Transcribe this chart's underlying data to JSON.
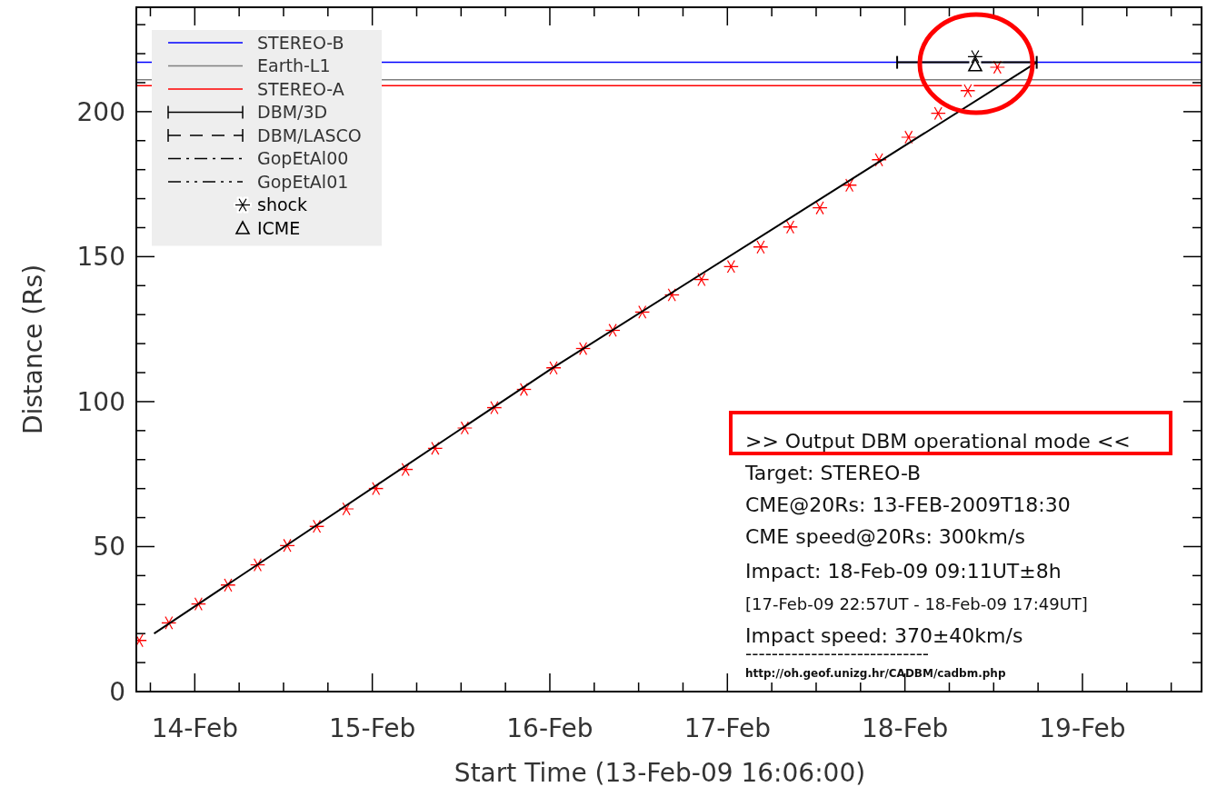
{
  "chart_data": {
    "type": "line",
    "xlabel": "Start Time (13-Feb-09 16:06:00)",
    "ylabel": "Distance (Rs)",
    "xlim": [
      "2009-02-13T16:06",
      "2009-02-19T16:06"
    ],
    "xticks": [
      {
        "value": "2009-02-13T18:00",
        "label": null
      },
      {
        "value": "2009-02-14",
        "label": "14-Feb"
      },
      {
        "value": "2009-02-14T06:00",
        "label": null
      },
      {
        "value": "2009-02-14T12:00",
        "label": null
      },
      {
        "value": "2009-02-14T18:00",
        "label": null
      },
      {
        "value": "2009-02-15",
        "label": "15-Feb"
      },
      {
        "value": "2009-02-15T06:00",
        "label": null
      },
      {
        "value": "2009-02-15T12:00",
        "label": null
      },
      {
        "value": "2009-02-15T18:00",
        "label": null
      },
      {
        "value": "2009-02-16",
        "label": "16-Feb"
      },
      {
        "value": "2009-02-16T06:00",
        "label": null
      },
      {
        "value": "2009-02-16T12:00",
        "label": null
      },
      {
        "value": "2009-02-16T18:00",
        "label": null
      },
      {
        "value": "2009-02-17",
        "label": "17-Feb"
      },
      {
        "value": "2009-02-17T06:00",
        "label": null
      },
      {
        "value": "2009-02-17T12:00",
        "label": null
      },
      {
        "value": "2009-02-17T18:00",
        "label": null
      },
      {
        "value": "2009-02-18",
        "label": "18-Feb"
      },
      {
        "value": "2009-02-18T06:00",
        "label": null
      },
      {
        "value": "2009-02-18T12:00",
        "label": null
      },
      {
        "value": "2009-02-18T18:00",
        "label": null
      },
      {
        "value": "2009-02-19",
        "label": "19-Feb"
      },
      {
        "value": "2009-02-19T06:00",
        "label": null
      },
      {
        "value": "2009-02-19T12:00",
        "label": null
      }
    ],
    "ylim": [
      0,
      236
    ],
    "yticks": [
      0,
      {
        "value": 10,
        "label": null
      },
      {
        "value": 20,
        "label": null
      },
      {
        "value": 30,
        "label": null
      },
      {
        "value": 40,
        "label": null
      },
      50,
      {
        "value": 60,
        "label": null
      },
      {
        "value": 70,
        "label": null
      },
      {
        "value": 80,
        "label": null
      },
      {
        "value": 90,
        "label": null
      },
      100,
      {
        "value": 110,
        "label": null
      },
      {
        "value": 120,
        "label": null
      },
      {
        "value": 130,
        "label": null
      },
      {
        "value": 140,
        "label": null
      },
      150,
      {
        "value": 160,
        "label": null
      },
      {
        "value": 170,
        "label": null
      },
      {
        "value": 180,
        "label": null
      },
      {
        "value": 190,
        "label": null
      },
      200,
      {
        "value": 210,
        "label": null
      },
      {
        "value": 220,
        "label": null
      },
      {
        "value": 230,
        "label": null
      }
    ],
    "grid": false,
    "legend": "top left",
    "series": [
      {
        "name": "STEREO-B",
        "color": "#0000ff",
        "line_style": "solid",
        "x": [
          "2009-02-13T16:06",
          "2009-02-19T16:06"
        ],
        "values": [
          217,
          217
        ]
      },
      {
        "name": "Earth-L1",
        "color": "#808080",
        "line_style": "solid",
        "x": [
          "2009-02-13T16:06",
          "2009-02-19T16:06"
        ],
        "values": [
          211,
          211
        ]
      },
      {
        "name": "STEREO-A",
        "color": "#ff0000",
        "line_style": "solid",
        "x": [
          "2009-02-13T16:06",
          "2009-02-19T16:06"
        ],
        "values": [
          209,
          209
        ]
      },
      {
        "type": "scatter",
        "color": "#ff0000",
        "marker": "cross",
        "x": [
          "2009-02-13T16:30",
          "2009-02-13T20:30",
          "2009-02-14T00:30",
          "2009-02-14T04:30",
          "2009-02-14T08:30",
          "2009-02-14T12:30",
          "2009-02-14T16:30",
          "2009-02-14T20:30",
          "2009-02-15T00:30",
          "2009-02-15T04:30",
          "2009-02-15T08:30",
          "2009-02-15T12:30",
          "2009-02-15T16:30",
          "2009-02-15T20:30",
          "2009-02-16T00:30",
          "2009-02-16T04:30",
          "2009-02-16T08:30",
          "2009-02-16T12:30",
          "2009-02-16T16:30",
          "2009-02-16T20:30",
          "2009-02-17T00:30",
          "2009-02-17T04:30",
          "2009-02-17T08:30",
          "2009-02-17T12:30",
          "2009-02-17T16:30",
          "2009-02-17T20:30",
          "2009-02-18T00:30",
          "2009-02-18T04:30",
          "2009-02-18T08:30",
          "2009-02-18T12:30"
        ],
        "values": [
          17.6,
          23.7,
          30.2,
          36.7,
          43.7,
          50.4,
          57,
          63,
          70,
          76.6,
          83.9,
          90.9,
          97.9,
          104.2,
          111.6,
          118.3,
          124.6,
          130.9,
          136.8,
          142.1,
          146.6,
          153.3,
          160.2,
          166.8,
          174.6,
          183.4,
          191.2,
          199.4,
          207.2,
          215.3
        ]
      },
      {
        "name": "DBM/3D",
        "color": "#000000",
        "line_style": "solid",
        "x": [
          "2009-02-13T18:30",
          "2009-02-16",
          "2009-02-18T17:49",
          "2009-02-18T00:00",
          "2009-02-17T22:57",
          "2009-02-18T17:49"
        ],
        "values": [
          20,
          111,
          217,
          null,
          217,
          217
        ]
      },
      {
        "name": "DBM/LASCO",
        "color": "#000000",
        "line_style": "dashed"
      },
      {
        "name": "GopEtAl00",
        "color": "#000000",
        "line_style": "dashdot"
      },
      {
        "name": "GopEtAl01",
        "color": "#000000",
        "line_style": "dashdotdot"
      },
      {
        "name": "shock",
        "type": "scatter",
        "color": "#000000",
        "marker": "cross",
        "x": [
          "2009-02-18T09:30"
        ],
        "values": [
          219
        ]
      },
      {
        "name": "ICME",
        "type": "scatter",
        "color": "#000000",
        "marker": "triangle",
        "x": [
          "2009-02-18T09:30"
        ],
        "values": [
          216
        ]
      }
    ],
    "annotations": [
      ">> Output DBM operational mode <<",
      "Target: STEREO-B",
      "CME@20Rs: 13-FEB-2009T18:30",
      "CME speed@20Rs: 300km/s",
      "Impact: 18-Feb-09 09:11UT±8h",
      "[17-Feb-09 22:57UT - 18-Feb-09 17:49UT]",
      "Impact speed: 370±40km/s",
      "----------------------------",
      "http://oh.geof.unizg.hr/CADBM/cadbm.php"
    ]
  }
}
